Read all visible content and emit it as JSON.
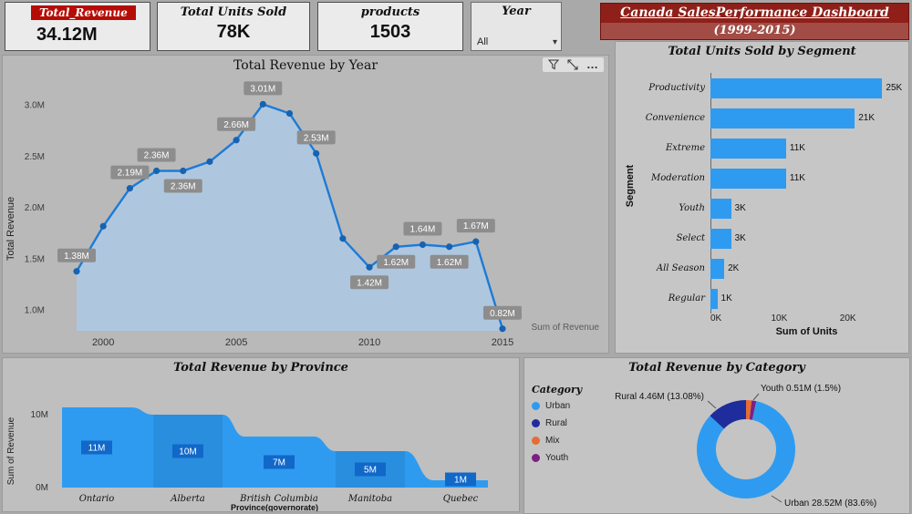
{
  "banner": {
    "line1": "Canada SalesPerformance Dashboard",
    "line2": "(1999-2015)"
  },
  "kpi_cards": [
    {
      "label": "Total_Revenue",
      "value": "34.12M"
    },
    {
      "label": "Total Units Sold",
      "value": "78K"
    },
    {
      "label": "products",
      "value": "1503"
    }
  ],
  "year_slicer": {
    "label": "Year",
    "value": "All"
  },
  "icons": {
    "chevron_down": "▾",
    "more_options": "…",
    "filter": "filter-funnel",
    "focus": "focus-mode"
  },
  "colors": {
    "accent_blue": "#2e9bf0",
    "banner_red": "#8e2019",
    "badge_red": "#b50d05",
    "rural_navy": "#1f2c9c",
    "mix_orange": "#e66c37",
    "youth_purple": "#7b2180"
  },
  "chart_data": [
    {
      "id": "revenue_by_year",
      "type": "area",
      "title": "Total Revenue by Year",
      "ylabel": "Total Revenue",
      "legend": "Sum of Revenue",
      "x": [
        1999,
        2000,
        2001,
        2002,
        2003,
        2004,
        2005,
        2006,
        2007,
        2008,
        2009,
        2010,
        2011,
        2012,
        2013,
        2014,
        2015
      ],
      "values": [
        1.38,
        1.82,
        2.19,
        2.36,
        2.36,
        2.45,
        2.66,
        3.01,
        2.92,
        2.53,
        1.7,
        1.42,
        1.62,
        1.64,
        1.62,
        1.67,
        0.82
      ],
      "unit": "M",
      "point_labels": [
        "1.38M",
        null,
        "2.19M",
        "2.36M",
        "2.36M",
        null,
        "2.66M",
        "3.01M",
        null,
        "2.53M",
        null,
        "1.42M",
        "1.62M",
        "1.64M",
        "1.62M",
        "1.67M",
        "0.82M"
      ],
      "label_side": [
        "above",
        "above",
        "above",
        "above",
        "below",
        "above",
        "above",
        "above",
        "above",
        "above",
        "above",
        "below",
        "below",
        "above",
        "below",
        "above",
        "above"
      ],
      "ylim": [
        0.8,
        3.2
      ],
      "ytick_values": [
        1.0,
        1.5,
        2.0,
        2.5,
        3.0
      ],
      "ytick_labels": [
        "1.0M",
        "1.5M",
        "2.0M",
        "2.5M",
        "3.0M"
      ],
      "xticks": [
        2000,
        2005,
        2010,
        2015
      ],
      "grid": false,
      "legend_position": "bottom-right"
    },
    {
      "id": "units_by_segment",
      "type": "bar",
      "orientation": "horizontal",
      "title": "Total Units Sold by Segment",
      "categories": [
        "Productivity",
        "Convenience",
        "Extreme",
        "Moderation",
        "Youth",
        "Select",
        "All Season",
        "Regular"
      ],
      "values": [
        25,
        21,
        11,
        11,
        3,
        3,
        2,
        1
      ],
      "value_labels": [
        "25K",
        "21K",
        "11K",
        "11K",
        "3K",
        "3K",
        "2K",
        "1K"
      ],
      "xlabel": "Sum of Units",
      "ylabel": "Segment",
      "xticks": [
        "0K",
        "10K",
        "20K"
      ],
      "xtick_values": [
        0,
        10,
        20
      ],
      "xlim": [
        0,
        28
      ],
      "grid": false
    },
    {
      "id": "revenue_by_province",
      "type": "area",
      "title": "Total Revenue by Province",
      "categories": [
        "Ontario",
        "Alberta",
        "British Columbia",
        "Manitoba",
        "Quebec"
      ],
      "values": [
        11,
        10,
        7,
        5,
        1
      ],
      "value_labels": [
        "11M",
        "10M",
        "7M",
        "5M",
        "1M"
      ],
      "ylabel": "Sum of Revenue",
      "xlabel": "Province(governorate)",
      "ytick_values": [
        0,
        10
      ],
      "ytick_labels": [
        "0M",
        "10M"
      ],
      "ylim": [
        0,
        13
      ],
      "grid": false
    },
    {
      "id": "revenue_by_category",
      "type": "pie",
      "title": "Total Revenue by Category",
      "legend_title": "Category",
      "segments": [
        {
          "name": "Urban",
          "value": 28.52,
          "color": "#2e9bf0",
          "callout": "Urban 28.52M (83.6%)"
        },
        {
          "name": "Rural",
          "value": 4.46,
          "color": "#1f2c9c",
          "callout": "Rural 4.46M (13.08%)"
        },
        {
          "name": "Mix",
          "value": 0.63,
          "color": "#e66c37",
          "callout": null
        },
        {
          "name": "Youth",
          "value": 0.51,
          "color": "#7b2180",
          "callout": "Youth 0.51M (1.5%)"
        }
      ],
      "draw_order": [
        2,
        3,
        0,
        1
      ],
      "legend_position": "left"
    }
  ]
}
